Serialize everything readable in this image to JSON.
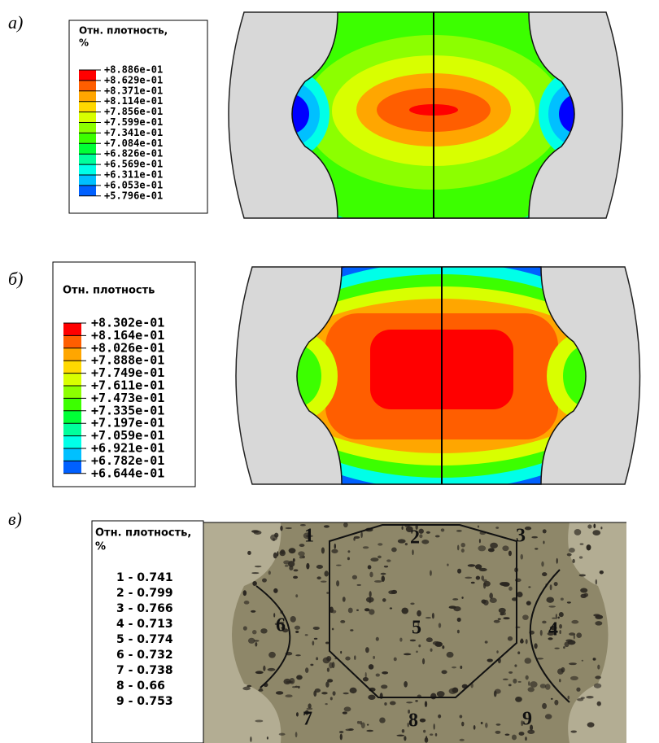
{
  "panels": [
    {
      "label": "а)",
      "legend": {
        "title": [
          "Отн. плотность,",
          "%"
        ],
        "entries": [
          "+8.886e-01",
          "+8.629e-01",
          "+8.371e-01",
          "+8.114e-01",
          "+7.856e-01",
          "+7.599e-01",
          "+7.341e-01",
          "+7.084e-01",
          "+6.826e-01",
          "+6.569e-01",
          "+6.311e-01",
          "+6.053e-01",
          "+5.796e-01"
        ],
        "colors": [
          "#ff0000",
          "#ff5e00",
          "#ffa600",
          "#ffd800",
          "#d8ff00",
          "#8cff00",
          "#3cff00",
          "#00ff36",
          "#00ff9c",
          "#00ffe8",
          "#00c0ff",
          "#0060ff",
          "#0000ff"
        ]
      }
    },
    {
      "label": "б)",
      "legend": {
        "title": [
          "Отн. плотность"
        ],
        "entries": [
          "+8.302e-01",
          "+8.164e-01",
          "+8.026e-01",
          "+7.888e-01",
          "+7.749e-01",
          "+7.611e-01",
          "+7.473e-01",
          "+7.335e-01",
          "+7.197e-01",
          "+7.059e-01",
          "+6.921e-01",
          "+6.782e-01",
          "+6.644e-01"
        ],
        "colors": [
          "#ff0000",
          "#ff5e00",
          "#ffa600",
          "#ffd800",
          "#d8ff00",
          "#8cff00",
          "#3cff00",
          "#00ff36",
          "#00ff9c",
          "#00ffe8",
          "#00c0ff",
          "#0060ff",
          "#0000ff"
        ]
      }
    },
    {
      "label": "в)",
      "legend": {
        "title": [
          "Отн. плотность,",
          "%"
        ],
        "entries": [
          "1 - 0.741",
          "2 - 0.799",
          "3 - 0.766",
          "4 - 0.713",
          "5 - 0.774",
          "6 - 0.732",
          "7 - 0.738",
          "8 - 0.66",
          "9 - 0.753"
        ]
      },
      "zones": [
        "1",
        "2",
        "3",
        "4",
        "5",
        "6",
        "7",
        "8",
        "9"
      ]
    }
  ]
}
